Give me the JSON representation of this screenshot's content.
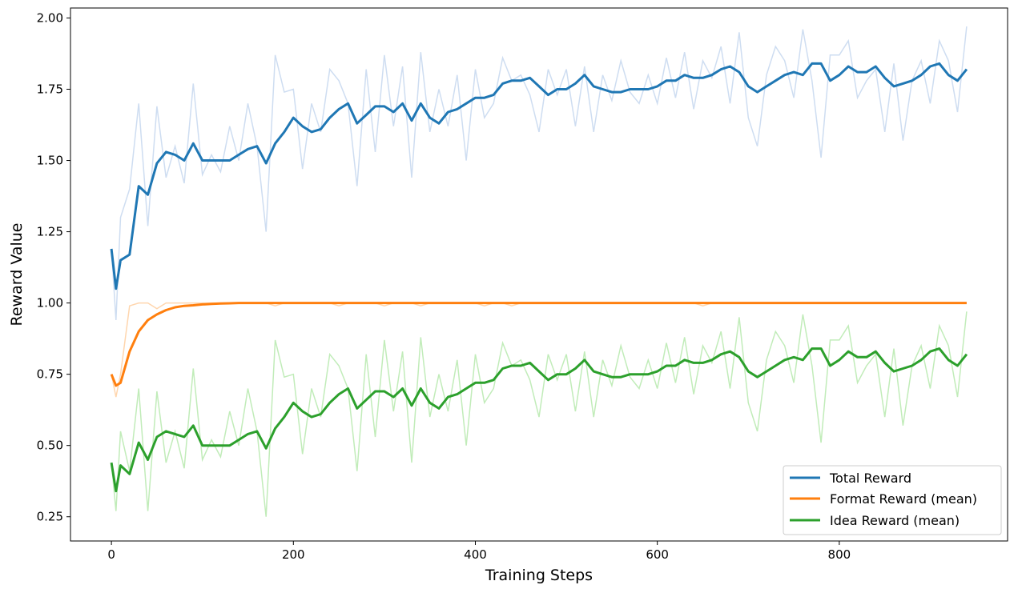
{
  "chart_data": {
    "type": "line",
    "title": "",
    "xlabel": "Training Steps",
    "ylabel": "Reward Value",
    "xlim": [
      -45,
      985
    ],
    "ylim": [
      0.165,
      2.035
    ],
    "xticks": [
      0,
      200,
      400,
      600,
      800
    ],
    "xtick_labels": [
      "0",
      "200",
      "400",
      "600",
      "800"
    ],
    "yticks": [
      0.25,
      0.5,
      0.75,
      1.0,
      1.25,
      1.5,
      1.75,
      2.0
    ],
    "ytick_labels": [
      "0.25",
      "0.50",
      "0.75",
      "1.00",
      "1.25",
      "1.50",
      "1.75",
      "2.00"
    ],
    "grid": false,
    "legend_position": "bottom-right",
    "x": [
      0,
      5,
      10,
      20,
      30,
      40,
      50,
      60,
      70,
      80,
      90,
      100,
      110,
      120,
      130,
      140,
      150,
      160,
      170,
      180,
      190,
      200,
      210,
      220,
      230,
      240,
      250,
      260,
      270,
      280,
      290,
      300,
      310,
      320,
      330,
      340,
      350,
      360,
      370,
      380,
      390,
      400,
      410,
      420,
      430,
      440,
      450,
      460,
      470,
      480,
      490,
      500,
      510,
      520,
      530,
      540,
      550,
      560,
      570,
      580,
      590,
      600,
      610,
      620,
      630,
      640,
      650,
      660,
      670,
      680,
      690,
      700,
      710,
      720,
      730,
      740,
      750,
      760,
      770,
      780,
      790,
      800,
      810,
      820,
      830,
      840,
      850,
      860,
      870,
      880,
      890,
      900,
      910,
      920,
      930,
      940
    ],
    "series": [
      {
        "name": "Total Reward",
        "color": "#1f77b4",
        "raw_color": "#aec7e8",
        "smoothed": [
          1.19,
          1.05,
          1.15,
          1.17,
          1.41,
          1.38,
          1.49,
          1.53,
          1.52,
          1.5,
          1.56,
          1.5,
          1.5,
          1.5,
          1.5,
          1.52,
          1.54,
          1.55,
          1.49,
          1.56,
          1.6,
          1.65,
          1.62,
          1.6,
          1.61,
          1.65,
          1.68,
          1.7,
          1.63,
          1.66,
          1.69,
          1.69,
          1.67,
          1.7,
          1.64,
          1.7,
          1.65,
          1.63,
          1.67,
          1.68,
          1.7,
          1.72,
          1.72,
          1.73,
          1.77,
          1.78,
          1.78,
          1.79,
          1.76,
          1.73,
          1.75,
          1.75,
          1.77,
          1.8,
          1.76,
          1.75,
          1.74,
          1.74,
          1.75,
          1.75,
          1.75,
          1.76,
          1.78,
          1.78,
          1.8,
          1.79,
          1.79,
          1.8,
          1.82,
          1.83,
          1.81,
          1.76,
          1.74,
          1.76,
          1.78,
          1.8,
          1.81,
          1.8,
          1.84,
          1.84,
          1.78,
          1.8,
          1.83,
          1.81,
          1.81,
          1.83,
          1.79,
          1.76,
          1.77,
          1.78,
          1.8,
          1.83,
          1.84,
          1.8,
          1.78,
          1.82
        ],
        "raw": [
          1.19,
          0.94,
          1.3,
          1.4,
          1.7,
          1.27,
          1.69,
          1.44,
          1.55,
          1.42,
          1.77,
          1.45,
          1.52,
          1.46,
          1.62,
          1.5,
          1.7,
          1.55,
          1.25,
          1.87,
          1.74,
          1.75,
          1.47,
          1.7,
          1.6,
          1.82,
          1.78,
          1.7,
          1.41,
          1.82,
          1.53,
          1.87,
          1.62,
          1.83,
          1.44,
          1.88,
          1.6,
          1.75,
          1.62,
          1.8,
          1.5,
          1.82,
          1.65,
          1.7,
          1.86,
          1.78,
          1.8,
          1.73,
          1.6,
          1.82,
          1.73,
          1.82,
          1.62,
          1.83,
          1.6,
          1.8,
          1.71,
          1.85,
          1.74,
          1.7,
          1.8,
          1.7,
          1.86,
          1.72,
          1.88,
          1.68,
          1.85,
          1.79,
          1.9,
          1.7,
          1.95,
          1.65,
          1.55,
          1.8,
          1.9,
          1.85,
          1.72,
          1.96,
          1.78,
          1.51,
          1.87,
          1.87,
          1.92,
          1.72,
          1.78,
          1.82,
          1.6,
          1.84,
          1.57,
          1.78,
          1.85,
          1.7,
          1.92,
          1.85,
          1.67,
          1.97
        ]
      },
      {
        "name": "Format Reward (mean)",
        "color": "#ff7f0e",
        "raw_color": "#ffbb78",
        "smoothed": [
          0.75,
          0.71,
          0.72,
          0.83,
          0.9,
          0.94,
          0.96,
          0.975,
          0.985,
          0.99,
          0.992,
          0.995,
          0.997,
          0.998,
          0.999,
          1.0,
          1.0,
          1.0,
          1.0,
          1.0,
          1.0,
          1.0,
          1.0,
          1.0,
          1.0,
          1.0,
          1.0,
          1.0,
          1.0,
          1.0,
          1.0,
          1.0,
          1.0,
          1.0,
          1.0,
          1.0,
          1.0,
          1.0,
          1.0,
          1.0,
          1.0,
          1.0,
          1.0,
          1.0,
          1.0,
          1.0,
          1.0,
          1.0,
          1.0,
          1.0,
          1.0,
          1.0,
          1.0,
          1.0,
          1.0,
          1.0,
          1.0,
          1.0,
          1.0,
          1.0,
          1.0,
          1.0,
          1.0,
          1.0,
          1.0,
          1.0,
          1.0,
          1.0,
          1.0,
          1.0,
          1.0,
          1.0,
          1.0,
          1.0,
          1.0,
          1.0,
          1.0,
          1.0,
          1.0,
          1.0,
          1.0,
          1.0,
          1.0,
          1.0,
          1.0,
          1.0,
          1.0,
          1.0,
          1.0,
          1.0,
          1.0,
          1.0,
          1.0,
          1.0,
          1.0,
          1.0
        ],
        "raw": [
          0.75,
          0.67,
          0.75,
          0.99,
          1.0,
          1.0,
          0.98,
          1.0,
          1.0,
          1.0,
          1.0,
          1.0,
          1.0,
          1.0,
          1.0,
          1.0,
          1.0,
          1.0,
          1.0,
          0.99,
          1.0,
          1.0,
          1.0,
          1.0,
          1.0,
          1.0,
          0.99,
          1.0,
          1.0,
          1.0,
          1.0,
          0.99,
          1.0,
          1.0,
          1.0,
          0.99,
          1.0,
          1.0,
          1.0,
          1.0,
          1.0,
          1.0,
          0.99,
          1.0,
          1.0,
          0.99,
          1.0,
          1.0,
          1.0,
          1.0,
          1.0,
          1.0,
          1.0,
          1.0,
          1.0,
          1.0,
          1.0,
          1.0,
          1.0,
          1.0,
          1.0,
          1.0,
          1.0,
          1.0,
          1.0,
          1.0,
          0.99,
          1.0,
          1.0,
          1.0,
          1.0,
          1.0,
          1.0,
          1.0,
          1.0,
          1.0,
          1.0,
          1.0,
          1.0,
          1.0,
          1.0,
          1.0,
          1.0,
          1.0,
          1.0,
          1.0,
          1.0,
          1.0,
          1.0,
          1.0,
          1.0,
          1.0,
          1.0,
          1.0,
          1.0,
          1.0
        ]
      },
      {
        "name": "Idea Reward (mean)",
        "color": "#2ca02c",
        "raw_color": "#98df8a",
        "smoothed": [
          0.44,
          0.34,
          0.43,
          0.4,
          0.51,
          0.45,
          0.53,
          0.55,
          0.54,
          0.53,
          0.57,
          0.5,
          0.5,
          0.5,
          0.5,
          0.52,
          0.54,
          0.55,
          0.49,
          0.56,
          0.6,
          0.65,
          0.62,
          0.6,
          0.61,
          0.65,
          0.68,
          0.7,
          0.63,
          0.66,
          0.69,
          0.69,
          0.67,
          0.7,
          0.64,
          0.7,
          0.65,
          0.63,
          0.67,
          0.68,
          0.7,
          0.72,
          0.72,
          0.73,
          0.77,
          0.78,
          0.78,
          0.79,
          0.76,
          0.73,
          0.75,
          0.75,
          0.77,
          0.8,
          0.76,
          0.75,
          0.74,
          0.74,
          0.75,
          0.75,
          0.75,
          0.76,
          0.78,
          0.78,
          0.8,
          0.79,
          0.79,
          0.8,
          0.82,
          0.83,
          0.81,
          0.76,
          0.74,
          0.76,
          0.78,
          0.8,
          0.81,
          0.8,
          0.84,
          0.84,
          0.78,
          0.8,
          0.83,
          0.81,
          0.81,
          0.83,
          0.79,
          0.76,
          0.77,
          0.78,
          0.8,
          0.83,
          0.84,
          0.8,
          0.78,
          0.82
        ],
        "raw": [
          0.44,
          0.27,
          0.55,
          0.41,
          0.7,
          0.27,
          0.69,
          0.44,
          0.55,
          0.42,
          0.77,
          0.45,
          0.52,
          0.46,
          0.62,
          0.5,
          0.7,
          0.55,
          0.25,
          0.87,
          0.74,
          0.75,
          0.47,
          0.7,
          0.6,
          0.82,
          0.78,
          0.7,
          0.41,
          0.82,
          0.53,
          0.87,
          0.62,
          0.83,
          0.44,
          0.88,
          0.6,
          0.75,
          0.62,
          0.8,
          0.5,
          0.82,
          0.65,
          0.7,
          0.86,
          0.78,
          0.8,
          0.73,
          0.6,
          0.82,
          0.73,
          0.82,
          0.62,
          0.83,
          0.6,
          0.8,
          0.71,
          0.85,
          0.74,
          0.7,
          0.8,
          0.7,
          0.86,
          0.72,
          0.88,
          0.68,
          0.85,
          0.79,
          0.9,
          0.7,
          0.95,
          0.65,
          0.55,
          0.8,
          0.9,
          0.85,
          0.72,
          0.96,
          0.78,
          0.51,
          0.87,
          0.87,
          0.92,
          0.72,
          0.78,
          0.82,
          0.6,
          0.84,
          0.57,
          0.78,
          0.85,
          0.7,
          0.92,
          0.85,
          0.67,
          0.97
        ]
      }
    ]
  }
}
